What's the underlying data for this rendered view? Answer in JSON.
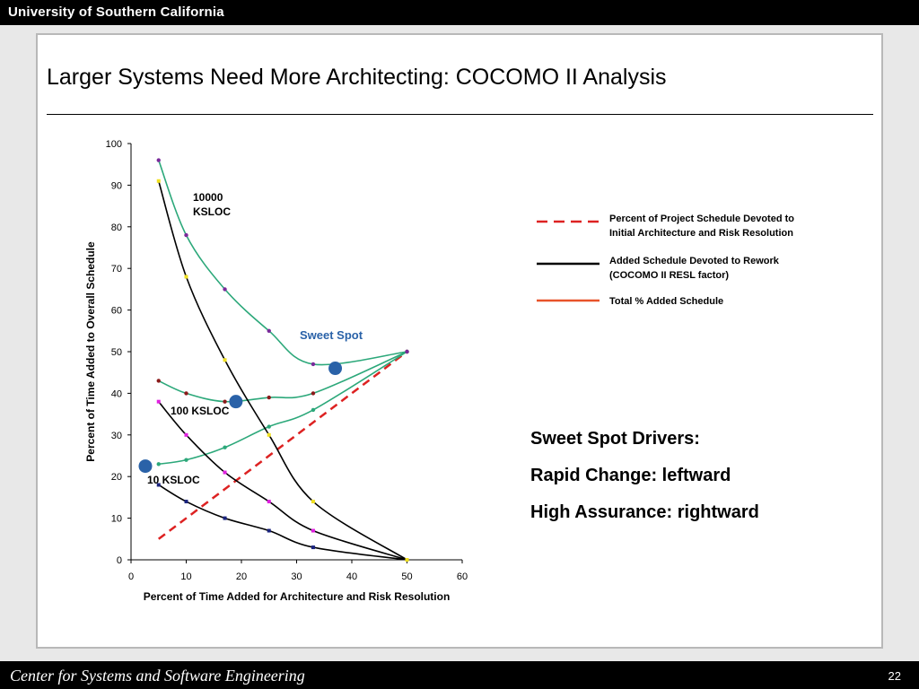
{
  "header": {
    "org": "University of Southern California"
  },
  "slide": {
    "title": "Larger Systems Need More Architecting: COCOMO II Analysis"
  },
  "footer": {
    "center": "Center for Systems and Software Engineering",
    "page": "22"
  },
  "drivers": {
    "heading": "Sweet Spot Drivers:",
    "line1": "Rapid Change: leftward",
    "line2": "High Assurance: rightward"
  },
  "colors": {
    "architecture": "#dd2222",
    "rework": "#000000",
    "total": "#e8532a",
    "fit": "#2ca87a",
    "sweet_dot": "#2a62a8",
    "sweet_text": "#2a62a8"
  },
  "chart_data": {
    "type": "scatter",
    "xlabel": "Percent of Time Added for Architecture and Risk Resolution",
    "ylabel": "Percent of Time Added to Overall Schedule",
    "xlim": [
      0,
      60
    ],
    "ylim": [
      0,
      100
    ],
    "xticks": [
      0,
      10,
      20,
      30,
      40,
      50,
      60
    ],
    "yticks": [
      0,
      10,
      20,
      30,
      40,
      50,
      60,
      70,
      80,
      90,
      100
    ],
    "legend": [
      {
        "label_l1": "Percent of Project Schedule Devoted to",
        "label_l2": "Initial Architecture and Risk Resolution",
        "style": "dashed",
        "color": "#dd2222"
      },
      {
        "label_l1": "Added Schedule Devoted to Rework",
        "label_l2": "(COCOMO II RESL factor)",
        "style": "solid",
        "color": "#000000"
      },
      {
        "label_l1": "Total % Added Schedule",
        "label_l2": "",
        "style": "solid",
        "color": "#e8532a"
      }
    ],
    "architecture_line": {
      "x": [
        5,
        50
      ],
      "y": [
        5,
        50
      ]
    },
    "series": [
      {
        "label": "10 KSLOC",
        "rework": {
          "x": [
            5,
            10,
            17,
            25,
            33,
            50
          ],
          "y": [
            18,
            14,
            10,
            7,
            3,
            0
          ],
          "marker": "#1a237e"
        },
        "total": {
          "x": [
            5,
            10,
            17,
            25,
            33,
            50
          ],
          "y": [
            23,
            24,
            27,
            32,
            36,
            50
          ],
          "marker": "#2ca87a"
        }
      },
      {
        "label": "100 KSLOC",
        "rework": {
          "x": [
            5,
            10,
            17,
            25,
            33,
            50
          ],
          "y": [
            38,
            30,
            21,
            14,
            7,
            0
          ],
          "marker": "#e020e0"
        },
        "total": {
          "x": [
            5,
            10,
            17,
            25,
            33,
            50
          ],
          "y": [
            43,
            40,
            38,
            39,
            40,
            50
          ],
          "marker": "#8b1a1a"
        }
      },
      {
        "label": "10000 KSLOC",
        "rework": {
          "x": [
            5,
            10,
            17,
            25,
            33,
            50
          ],
          "y": [
            91,
            68,
            48,
            30,
            14,
            0
          ],
          "marker": "#f0e020"
        },
        "total": {
          "x": [
            5,
            10,
            17,
            25,
            33,
            50
          ],
          "y": [
            96,
            78,
            65,
            55,
            47,
            50
          ],
          "marker": "#7a2a9a"
        }
      }
    ],
    "sweet_spots": [
      {
        "x": 2.6,
        "y": 22.5
      },
      {
        "x": 19,
        "y": 38
      },
      {
        "x": 37,
        "y": 46
      }
    ],
    "annotations": {
      "sweet_spot": "Sweet Spot",
      "label_10000_l1": "10000",
      "label_10000_l2": "KSLOC"
    }
  }
}
